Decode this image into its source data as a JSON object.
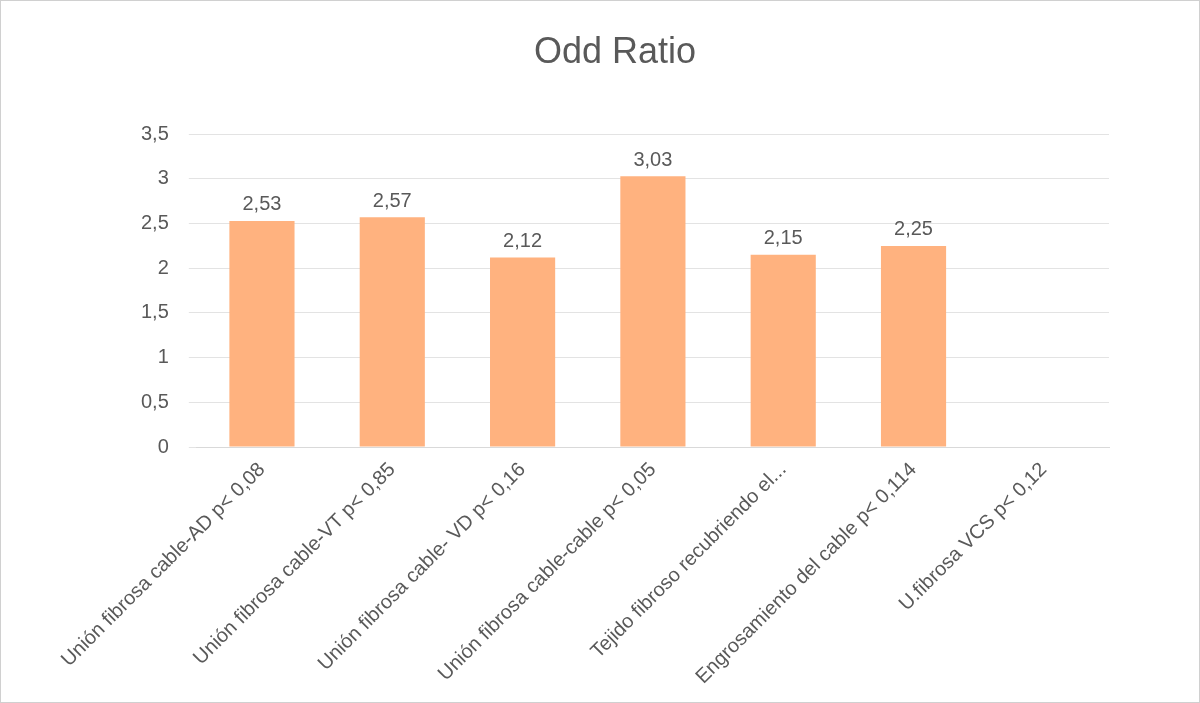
{
  "chart_data": {
    "type": "bar",
    "title": "Odd Ratio",
    "categories": [
      "Unión fibrosa cable-AD p< 0,08",
      "Unión fibrosa cable-VT p< 0,85",
      "Unión fibrosa cable- VD p< 0,16",
      "Unión fibrosa cable-cable p< 0,05",
      "Tejido fibroso recubriendo el...",
      "Engrosamiento del cable p< 0,114",
      "U.fibrosa VCS p< 0,12"
    ],
    "values": [
      2.53,
      2.57,
      2.12,
      3.03,
      2.15,
      2.25,
      null
    ],
    "value_labels": [
      "2,53",
      "2,57",
      "2,12",
      "3,03",
      "2,15",
      "2,25",
      null
    ],
    "color": "#ffb27f",
    "ylim": [
      0,
      3.5
    ],
    "yticks": [
      0,
      {
        "value": 0.5,
        "label": "0,5"
      },
      1,
      {
        "value": 1.5,
        "label": "1,5"
      },
      2,
      {
        "value": 2.5,
        "label": "2,5"
      },
      3,
      {
        "value": 3.5,
        "label": "3,5"
      }
    ],
    "grid": "y",
    "legend": false
  }
}
